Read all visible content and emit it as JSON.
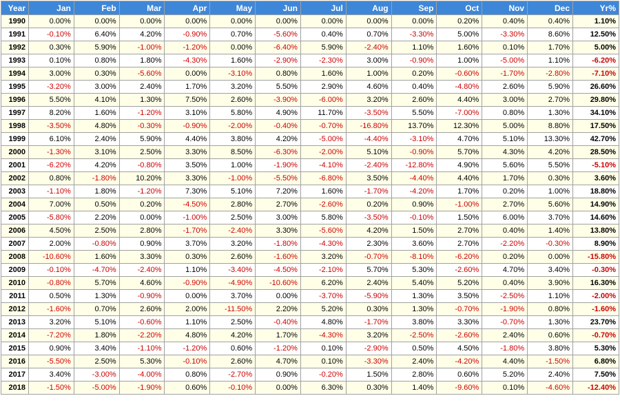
{
  "headers": [
    "Year",
    "Jan",
    "Feb",
    "Mar",
    "Apr",
    "May",
    "Jun",
    "Jul",
    "Aug",
    "Sep",
    "Oct",
    "Nov",
    "Dec",
    "Yr%"
  ],
  "rows": [
    [
      "1990",
      "0.00%",
      "0.00%",
      "0.00%",
      "0.00%",
      "0.00%",
      "0.00%",
      "0.00%",
      "0.00%",
      "0.00%",
      "0.20%",
      "0.40%",
      "0.40%",
      "1.10%"
    ],
    [
      "1991",
      "-0.10%",
      "6.40%",
      "4.20%",
      "-0.90%",
      "0.70%",
      "-5.60%",
      "0.40%",
      "0.70%",
      "-3.30%",
      "5.00%",
      "-3.30%",
      "8.60%",
      "12.50%"
    ],
    [
      "1992",
      "0.30%",
      "5.90%",
      "-1.00%",
      "-1.20%",
      "0.00%",
      "-6.40%",
      "5.90%",
      "-2.40%",
      "1.10%",
      "1.60%",
      "0.10%",
      "1.70%",
      "5.00%"
    ],
    [
      "1993",
      "0.10%",
      "0.80%",
      "1.80%",
      "-4.30%",
      "1.60%",
      "-2.90%",
      "-2.30%",
      "3.00%",
      "-0.90%",
      "1.00%",
      "-5.00%",
      "1.10%",
      "-6.20%"
    ],
    [
      "1994",
      "3.00%",
      "0.30%",
      "-5.60%",
      "0.00%",
      "-3.10%",
      "0.80%",
      "1.60%",
      "1.00%",
      "0.20%",
      "-0.60%",
      "-1.70%",
      "-2.80%",
      "-7.10%"
    ],
    [
      "1995",
      "-3.20%",
      "3.00%",
      "2.40%",
      "1.70%",
      "3.20%",
      "5.50%",
      "2.90%",
      "4.60%",
      "0.40%",
      "-4.80%",
      "2.60%",
      "5.90%",
      "26.60%"
    ],
    [
      "1996",
      "5.50%",
      "4.10%",
      "1.30%",
      "7.50%",
      "2.60%",
      "-3.90%",
      "-6.00%",
      "3.20%",
      "2.60%",
      "4.40%",
      "3.00%",
      "2.70%",
      "29.80%"
    ],
    [
      "1997",
      "8.20%",
      "1.60%",
      "-1.20%",
      "3.10%",
      "5.80%",
      "4.90%",
      "11.70%",
      "-3.50%",
      "5.50%",
      "-7.00%",
      "0.80%",
      "1.30%",
      "34.10%"
    ],
    [
      "1998",
      "-3.50%",
      "4.80%",
      "-0.30%",
      "-0.90%",
      "-2.00%",
      "-0.40%",
      "-0.70%",
      "-16.80%",
      "13.70%",
      "12.30%",
      "5.00%",
      "8.80%",
      "17.50%"
    ],
    [
      "1999",
      "6.10%",
      "2.40%",
      "5.90%",
      "4.40%",
      "3.80%",
      "4.20%",
      "-5.00%",
      "-4.40%",
      "-3.10%",
      "4.70%",
      "5.10%",
      "13.30%",
      "42.70%"
    ],
    [
      "2000",
      "-1.30%",
      "3.10%",
      "2.50%",
      "3.30%",
      "8.50%",
      "-6.30%",
      "-2.00%",
      "5.10%",
      "-0.90%",
      "5.70%",
      "4.30%",
      "4.20%",
      "28.50%"
    ],
    [
      "2001",
      "-6.20%",
      "4.20%",
      "-0.80%",
      "3.50%",
      "1.00%",
      "-1.90%",
      "-4.10%",
      "-2.40%",
      "-12.80%",
      "4.90%",
      "5.60%",
      "5.50%",
      "-5.10%"
    ],
    [
      "2002",
      "0.80%",
      "-1.80%",
      "10.20%",
      "3.30%",
      "-1.00%",
      "-5.50%",
      "-6.80%",
      "3.50%",
      "-4.40%",
      "4.40%",
      "1.70%",
      "0.30%",
      "3.60%"
    ],
    [
      "2003",
      "-1.10%",
      "1.80%",
      "-1.20%",
      "7.30%",
      "5.10%",
      "7.20%",
      "1.60%",
      "-1.70%",
      "-4.20%",
      "1.70%",
      "0.20%",
      "1.00%",
      "18.80%"
    ],
    [
      "2004",
      "7.00%",
      "0.50%",
      "0.20%",
      "-4.50%",
      "2.80%",
      "2.70%",
      "-2.60%",
      "0.20%",
      "0.90%",
      "-1.00%",
      "2.70%",
      "5.60%",
      "14.90%"
    ],
    [
      "2005",
      "-5.80%",
      "2.20%",
      "0.00%",
      "-1.00%",
      "2.50%",
      "3.00%",
      "5.80%",
      "-3.50%",
      "-0.10%",
      "1.50%",
      "6.00%",
      "3.70%",
      "14.60%"
    ],
    [
      "2006",
      "4.50%",
      "2.50%",
      "2.80%",
      "-1.70%",
      "-2.40%",
      "3.30%",
      "-5.60%",
      "4.20%",
      "1.50%",
      "2.70%",
      "0.40%",
      "1.40%",
      "13.80%"
    ],
    [
      "2007",
      "2.00%",
      "-0.80%",
      "0.90%",
      "3.70%",
      "3.20%",
      "-1.80%",
      "-4.30%",
      "2.30%",
      "3.60%",
      "2.70%",
      "-2.20%",
      "-0.30%",
      "8.90%"
    ],
    [
      "2008",
      "-10.60%",
      "1.60%",
      "3.30%",
      "0.30%",
      "2.60%",
      "-1.60%",
      "3.20%",
      "-0.70%",
      "-8.10%",
      "-6.20%",
      "0.20%",
      "0.00%",
      "-15.80%"
    ],
    [
      "2009",
      "-0.10%",
      "-4.70%",
      "-2.40%",
      "1.10%",
      "-3.40%",
      "-4.50%",
      "-2.10%",
      "5.70%",
      "5.30%",
      "-2.60%",
      "4.70%",
      "3.40%",
      "-0.30%"
    ],
    [
      "2010",
      "-0.80%",
      "5.70%",
      "4.60%",
      "-0.90%",
      "-4.90%",
      "-10.60%",
      "6.20%",
      "2.40%",
      "5.40%",
      "5.20%",
      "0.40%",
      "3.90%",
      "16.30%"
    ],
    [
      "2011",
      "0.50%",
      "1.30%",
      "-0.90%",
      "0.00%",
      "3.70%",
      "0.00%",
      "-3.70%",
      "-5.90%",
      "1.30%",
      "3.50%",
      "-2.50%",
      "1.10%",
      "-2.00%"
    ],
    [
      "2012",
      "-1.60%",
      "0.70%",
      "2.60%",
      "2.00%",
      "-11.50%",
      "2.20%",
      "5.20%",
      "0.30%",
      "1.30%",
      "-0.70%",
      "-1.90%",
      "0.80%",
      "-1.60%"
    ],
    [
      "2013",
      "3.20%",
      "5.10%",
      "-0.60%",
      "1.10%",
      "2.50%",
      "-0.40%",
      "4.80%",
      "-1.70%",
      "3.80%",
      "3.30%",
      "-0.70%",
      "1.30%",
      "23.70%"
    ],
    [
      "2014",
      "-7.20%",
      "1.80%",
      "-2.20%",
      "4.80%",
      "4.20%",
      "1.70%",
      "-4.30%",
      "3.20%",
      "-2.50%",
      "-2.60%",
      "2.40%",
      "0.60%",
      "-0.70%"
    ],
    [
      "2015",
      "0.90%",
      "3.40%",
      "-1.10%",
      "-1.20%",
      "0.60%",
      "-1.20%",
      "0.10%",
      "-2.90%",
      "0.50%",
      "4.50%",
      "-1.80%",
      "3.80%",
      "5.30%"
    ],
    [
      "2016",
      "-5.50%",
      "2.50%",
      "5.30%",
      "-0.10%",
      "2.60%",
      "4.70%",
      "0.10%",
      "-3.30%",
      "2.40%",
      "-4.20%",
      "4.40%",
      "-1.50%",
      "6.80%"
    ],
    [
      "2017",
      "3.40%",
      "-3.00%",
      "-4.00%",
      "0.80%",
      "-2.70%",
      "0.90%",
      "-0.20%",
      "1.50%",
      "2.80%",
      "0.60%",
      "5.20%",
      "2.40%",
      "7.50%"
    ],
    [
      "2018",
      "-1.50%",
      "-5.00%",
      "-1.90%",
      "0.60%",
      "-0.10%",
      "0.00%",
      "6.30%",
      "0.30%",
      "1.40%",
      "-9.60%",
      "0.10%",
      "-4.60%",
      "-12.40%"
    ]
  ],
  "colors": {
    "header_bg": "#3e87d8",
    "header_text": "#ffffff",
    "row_odd_bg": "#ffffe8",
    "row_even_bg": "#ffffff",
    "negative_text": "#cc0000",
    "border": "#a0a0a0"
  }
}
